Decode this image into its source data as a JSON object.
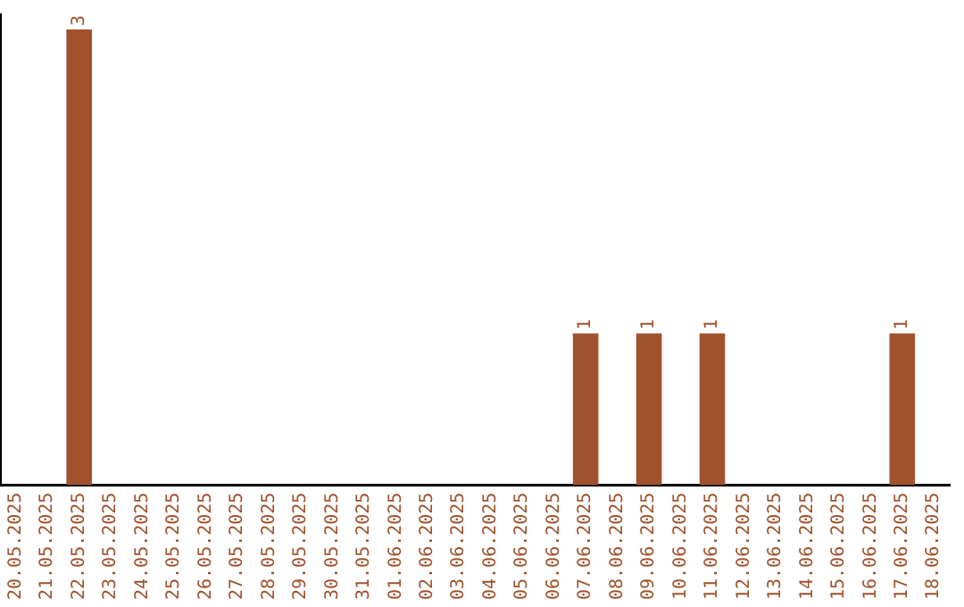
{
  "chart_data": {
    "type": "bar",
    "categories": [
      "20.05.2025",
      "21.05.2025",
      "22.05.2025",
      "23.05.2025",
      "24.05.2025",
      "25.05.2025",
      "26.05.2025",
      "27.05.2025",
      "28.05.2025",
      "29.05.2025",
      "30.05.2025",
      "31.05.2025",
      "01.06.2025",
      "02.06.2025",
      "03.06.2025",
      "04.06.2025",
      "05.06.2025",
      "06.06.2025",
      "07.06.2025",
      "08.06.2025",
      "09.06.2025",
      "10.06.2025",
      "11.06.2025",
      "12.06.2025",
      "13.06.2025",
      "14.06.2025",
      "15.06.2025",
      "16.06.2025",
      "17.06.2025",
      "18.06.2025"
    ],
    "values": [
      0,
      0,
      3,
      0,
      0,
      0,
      0,
      0,
      0,
      0,
      0,
      0,
      0,
      0,
      0,
      0,
      0,
      0,
      1,
      0,
      1,
      0,
      1,
      0,
      0,
      0,
      0,
      0,
      1,
      0
    ],
    "value_labels": [
      null,
      null,
      "3",
      null,
      null,
      null,
      null,
      null,
      null,
      null,
      null,
      null,
      null,
      null,
      null,
      null,
      null,
      null,
      "1",
      null,
      "1",
      null,
      "1",
      null,
      null,
      null,
      null,
      null,
      "1",
      null
    ],
    "color": "#a0522d",
    "ylim": [
      0,
      3.1
    ],
    "tick_labels": "x",
    "grid": false,
    "legend": false
  }
}
